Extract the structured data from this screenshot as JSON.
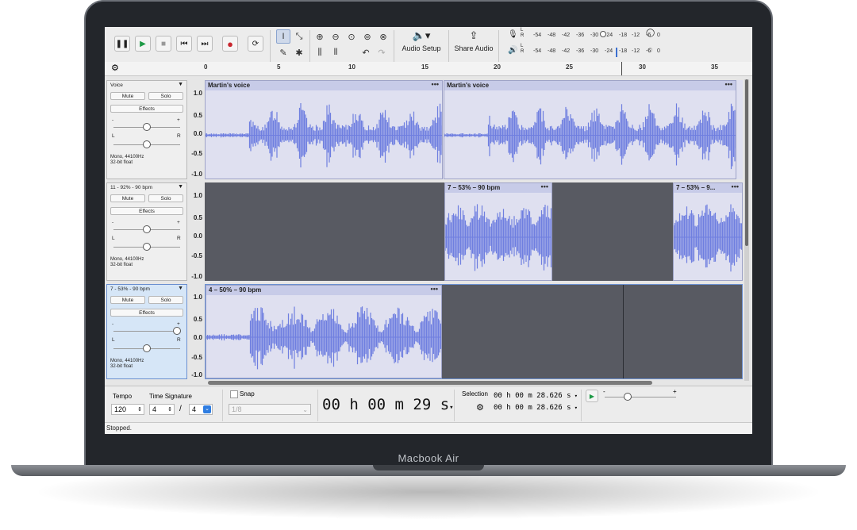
{
  "device": {
    "label": "Macbook Air"
  },
  "toolbar": {
    "audio_setup_label": "Audio Setup",
    "share_audio_label": "Share Audio",
    "meter_rec_letters": [
      "L",
      "R"
    ],
    "meter_play_letters": [
      "L",
      "R"
    ],
    "meter_ticks": [
      "-54",
      "-48",
      "-42",
      "-36",
      "-30",
      "-24",
      "-18",
      "-12",
      "-6",
      "0"
    ]
  },
  "ruler": {
    "labels": [
      "0",
      "5",
      "10",
      "15",
      "20",
      "25",
      "30",
      "35"
    ]
  },
  "tracks": [
    {
      "name": "Voice",
      "mute_label": "Mute",
      "solo_label": "Solo",
      "effects_label": "Effects",
      "gain_minus": "-",
      "gain_plus": "+",
      "pan_left": "L",
      "pan_right": "R",
      "format": "Mono, 44100Hz",
      "bitdepth": "32-bit float",
      "gain_level": 0.5,
      "pan_level": 0.5,
      "scale": [
        "1.0",
        "0.5",
        "0.0",
        "-0.5",
        "-1.0"
      ],
      "clips": [
        {
          "title": "Martin's voice",
          "dots": "•••"
        },
        {
          "title": "Martin's voice",
          "dots": "•••"
        }
      ]
    },
    {
      "name": "11 - 92% - 90 bpm",
      "mute_label": "Mute",
      "solo_label": "Solo",
      "effects_label": "Effects",
      "gain_minus": "-",
      "gain_plus": "+",
      "pan_left": "L",
      "pan_right": "R",
      "format": "Mono, 44100Hz",
      "bitdepth": "32-bit float",
      "gain_level": 0.5,
      "pan_level": 0.5,
      "scale": [
        "1.0",
        "0.5",
        "0.0",
        "-0.5",
        "-1.0"
      ],
      "clips": [
        {
          "title": "7 – 53% – 90 bpm",
          "dots": "•••"
        },
        {
          "title": "7 – 53% – 9...",
          "dots": "•••"
        }
      ]
    },
    {
      "name": "7 - 53% - 90 bpm",
      "mute_label": "Mute",
      "solo_label": "Solo",
      "effects_label": "Effects",
      "gain_minus": "-",
      "gain_plus": "+",
      "pan_left": "L",
      "pan_right": "R",
      "format": "Mono, 44100Hz",
      "bitdepth": "32-bit float",
      "gain_level": 0.95,
      "pan_level": 0.5,
      "scale": [
        "1.0",
        "0.5",
        "0.0",
        "-0.5",
        "-1.0"
      ],
      "clips": [
        {
          "title": "4 – 50% – 90 bpm",
          "dots": "•••"
        }
      ]
    }
  ],
  "bottom": {
    "tempo_label": "Tempo",
    "tempo_value": "120",
    "time_signature_label": "Time Signature",
    "ts_numerator": "4",
    "ts_slash": "/",
    "ts_denominator": "4",
    "snap_label": "Snap",
    "snap_value": "1/8",
    "time_display": "00 h 00 m 29 s",
    "selection_label": "Selection",
    "selection_start": "00 h 00 m 28.626 s",
    "selection_end": "00 h 00 m 28.626 s",
    "speed_minus": "-",
    "speed_plus": "+"
  },
  "status": {
    "text": "Stopped."
  },
  "colors": {
    "waveform": "#6f7fe0",
    "clip_bg": "#dfe0f0",
    "empty_lane": "#585a62",
    "record": "#c8262e",
    "play": "#1e9a46"
  }
}
